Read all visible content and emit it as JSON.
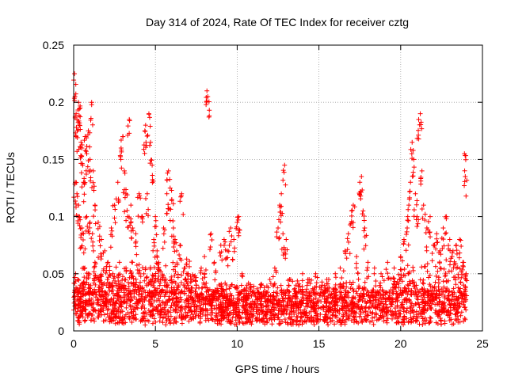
{
  "chart_data": {
    "type": "scatter",
    "title": "Day 314 of 2024, Rate Of TEC Index for receiver cztg",
    "xlabel": "GPS time / hours",
    "ylabel": "ROTI / TECUs",
    "xlim": [
      0,
      25
    ],
    "ylim": [
      0,
      0.25
    ],
    "xticks": [
      0,
      5,
      10,
      15,
      20,
      25
    ],
    "xtick_labels": [
      "0",
      "5",
      "10",
      "15",
      "20",
      "25"
    ],
    "yticks": [
      0,
      0.05,
      0.1,
      0.15,
      0.2,
      0.25
    ],
    "ytick_labels": [
      "0",
      "0.05",
      "0.1",
      "0.15",
      "0.2",
      "0.25"
    ],
    "grid": true,
    "marker": "+",
    "color": "#ff0000",
    "series": [
      {
        "name": "ROTI",
        "points": [
          [
            0.05,
            0.225
          ],
          [
            0.08,
            0.205
          ],
          [
            0.15,
            0.19
          ],
          [
            0.22,
            0.175
          ],
          [
            0.3,
            0.2
          ],
          [
            0.35,
            0.18
          ],
          [
            0.4,
            0.195
          ],
          [
            0.45,
            0.165
          ],
          [
            0.5,
            0.16
          ],
          [
            0.55,
            0.145
          ],
          [
            0.6,
            0.13
          ],
          [
            0.7,
            0.17
          ],
          [
            0.8,
            0.155
          ],
          [
            0.9,
            0.175
          ],
          [
            1.0,
            0.15
          ],
          [
            1.1,
            0.2
          ],
          [
            1.2,
            0.14
          ],
          [
            1.3,
            0.11
          ],
          [
            0.1,
            0.13
          ],
          [
            0.2,
            0.12
          ],
          [
            0.3,
            0.11
          ],
          [
            0.35,
            0.1
          ],
          [
            0.5,
            0.09
          ],
          [
            0.6,
            0.085
          ],
          [
            0.8,
            0.1
          ],
          [
            1.0,
            0.095
          ],
          [
            1.15,
            0.085
          ],
          [
            0.12,
            0.05
          ],
          [
            0.25,
            0.045
          ],
          [
            0.4,
            0.04
          ],
          [
            0.6,
            0.055
          ],
          [
            0.9,
            0.05
          ],
          [
            1.3,
            0.06
          ],
          [
            1.5,
            0.095
          ],
          [
            1.7,
            0.08
          ],
          [
            1.9,
            0.07
          ],
          [
            2.1,
            0.06
          ],
          [
            2.3,
            0.09
          ],
          [
            2.5,
            0.11
          ],
          [
            2.7,
            0.13
          ],
          [
            2.9,
            0.16
          ],
          [
            3.0,
            0.17
          ],
          [
            3.1,
            0.14
          ],
          [
            3.2,
            0.12
          ],
          [
            3.3,
            0.1
          ],
          [
            3.4,
            0.185
          ],
          [
            3.5,
            0.11
          ],
          [
            3.6,
            0.09
          ],
          [
            3.8,
            0.085
          ],
          [
            4.0,
            0.12
          ],
          [
            4.2,
            0.1
          ],
          [
            4.35,
            0.175
          ],
          [
            4.4,
            0.18
          ],
          [
            4.5,
            0.12
          ],
          [
            4.6,
            0.19
          ],
          [
            4.7,
            0.165
          ],
          [
            4.8,
            0.145
          ],
          [
            4.9,
            0.08
          ],
          [
            5.0,
            0.1
          ],
          [
            5.1,
            0.07
          ],
          [
            1.6,
            0.045
          ],
          [
            2.0,
            0.04
          ],
          [
            2.4,
            0.05
          ],
          [
            2.8,
            0.06
          ],
          [
            3.2,
            0.055
          ],
          [
            3.6,
            0.06
          ],
          [
            4.0,
            0.05
          ],
          [
            4.4,
            0.055
          ],
          [
            4.8,
            0.045
          ],
          [
            5.2,
            0.06
          ],
          [
            5.5,
            0.09
          ],
          [
            5.7,
            0.12
          ],
          [
            5.8,
            0.14
          ],
          [
            5.9,
            0.125
          ],
          [
            6.0,
            0.115
          ],
          [
            6.1,
            0.09
          ],
          [
            6.2,
            0.08
          ],
          [
            6.3,
            0.07
          ],
          [
            6.5,
            0.075
          ],
          [
            6.6,
            0.12
          ],
          [
            6.8,
            0.055
          ],
          [
            7.0,
            0.05
          ],
          [
            7.2,
            0.045
          ],
          [
            7.5,
            0.04
          ],
          [
            7.8,
            0.055
          ],
          [
            8.0,
            0.065
          ],
          [
            8.15,
            0.21
          ],
          [
            8.2,
            0.205
          ],
          [
            8.4,
            0.085
          ],
          [
            8.6,
            0.06
          ],
          [
            9.0,
            0.075
          ],
          [
            9.2,
            0.08
          ],
          [
            9.4,
            0.07
          ],
          [
            9.6,
            0.09
          ],
          [
            9.8,
            0.08
          ],
          [
            10.0,
            0.095
          ],
          [
            10.1,
            0.1
          ],
          [
            10.3,
            0.05
          ],
          [
            10.6,
            0.04
          ],
          [
            11.0,
            0.035
          ],
          [
            11.5,
            0.04
          ],
          [
            12.0,
            0.045
          ],
          [
            12.3,
            0.055
          ],
          [
            12.5,
            0.09
          ],
          [
            12.6,
            0.11
          ],
          [
            12.7,
            0.12
          ],
          [
            12.8,
            0.085
          ],
          [
            12.9,
            0.145
          ],
          [
            13.0,
            0.08
          ],
          [
            13.2,
            0.045
          ],
          [
            13.6,
            0.04
          ],
          [
            14.0,
            0.05
          ],
          [
            14.4,
            0.045
          ],
          [
            14.8,
            0.05
          ],
          [
            15.2,
            0.04
          ],
          [
            15.6,
            0.045
          ],
          [
            16.0,
            0.05
          ],
          [
            16.3,
            0.055
          ],
          [
            16.6,
            0.07
          ],
          [
            16.8,
            0.085
          ],
          [
            17.0,
            0.105
          ],
          [
            17.1,
            0.11
          ],
          [
            17.3,
            0.065
          ],
          [
            17.5,
            0.13
          ],
          [
            17.6,
            0.135
          ],
          [
            17.7,
            0.105
          ],
          [
            17.8,
            0.09
          ],
          [
            18.0,
            0.06
          ],
          [
            18.4,
            0.055
          ],
          [
            18.8,
            0.05
          ],
          [
            19.2,
            0.06
          ],
          [
            19.6,
            0.055
          ],
          [
            20.0,
            0.065
          ],
          [
            20.2,
            0.08
          ],
          [
            20.4,
            0.09
          ],
          [
            20.5,
            0.11
          ],
          [
            20.6,
            0.13
          ],
          [
            20.7,
            0.165
          ],
          [
            20.8,
            0.15
          ],
          [
            20.9,
            0.12
          ],
          [
            21.0,
            0.1
          ],
          [
            21.1,
            0.185
          ],
          [
            21.2,
            0.19
          ],
          [
            21.3,
            0.14
          ],
          [
            21.4,
            0.11
          ],
          [
            21.6,
            0.09
          ],
          [
            21.8,
            0.1
          ],
          [
            22.0,
            0.075
          ],
          [
            22.2,
            0.085
          ],
          [
            22.4,
            0.07
          ],
          [
            22.6,
            0.09
          ],
          [
            22.8,
            0.1
          ],
          [
            23.0,
            0.08
          ],
          [
            23.2,
            0.07
          ],
          [
            23.4,
            0.075
          ],
          [
            23.6,
            0.08
          ],
          [
            23.8,
            0.06
          ],
          [
            23.9,
            0.155
          ],
          [
            23.95,
            0.135
          ],
          [
            24.0,
            0.05
          ]
        ],
        "baseline_band": [
          0.005,
          0.035
        ]
      }
    ]
  }
}
